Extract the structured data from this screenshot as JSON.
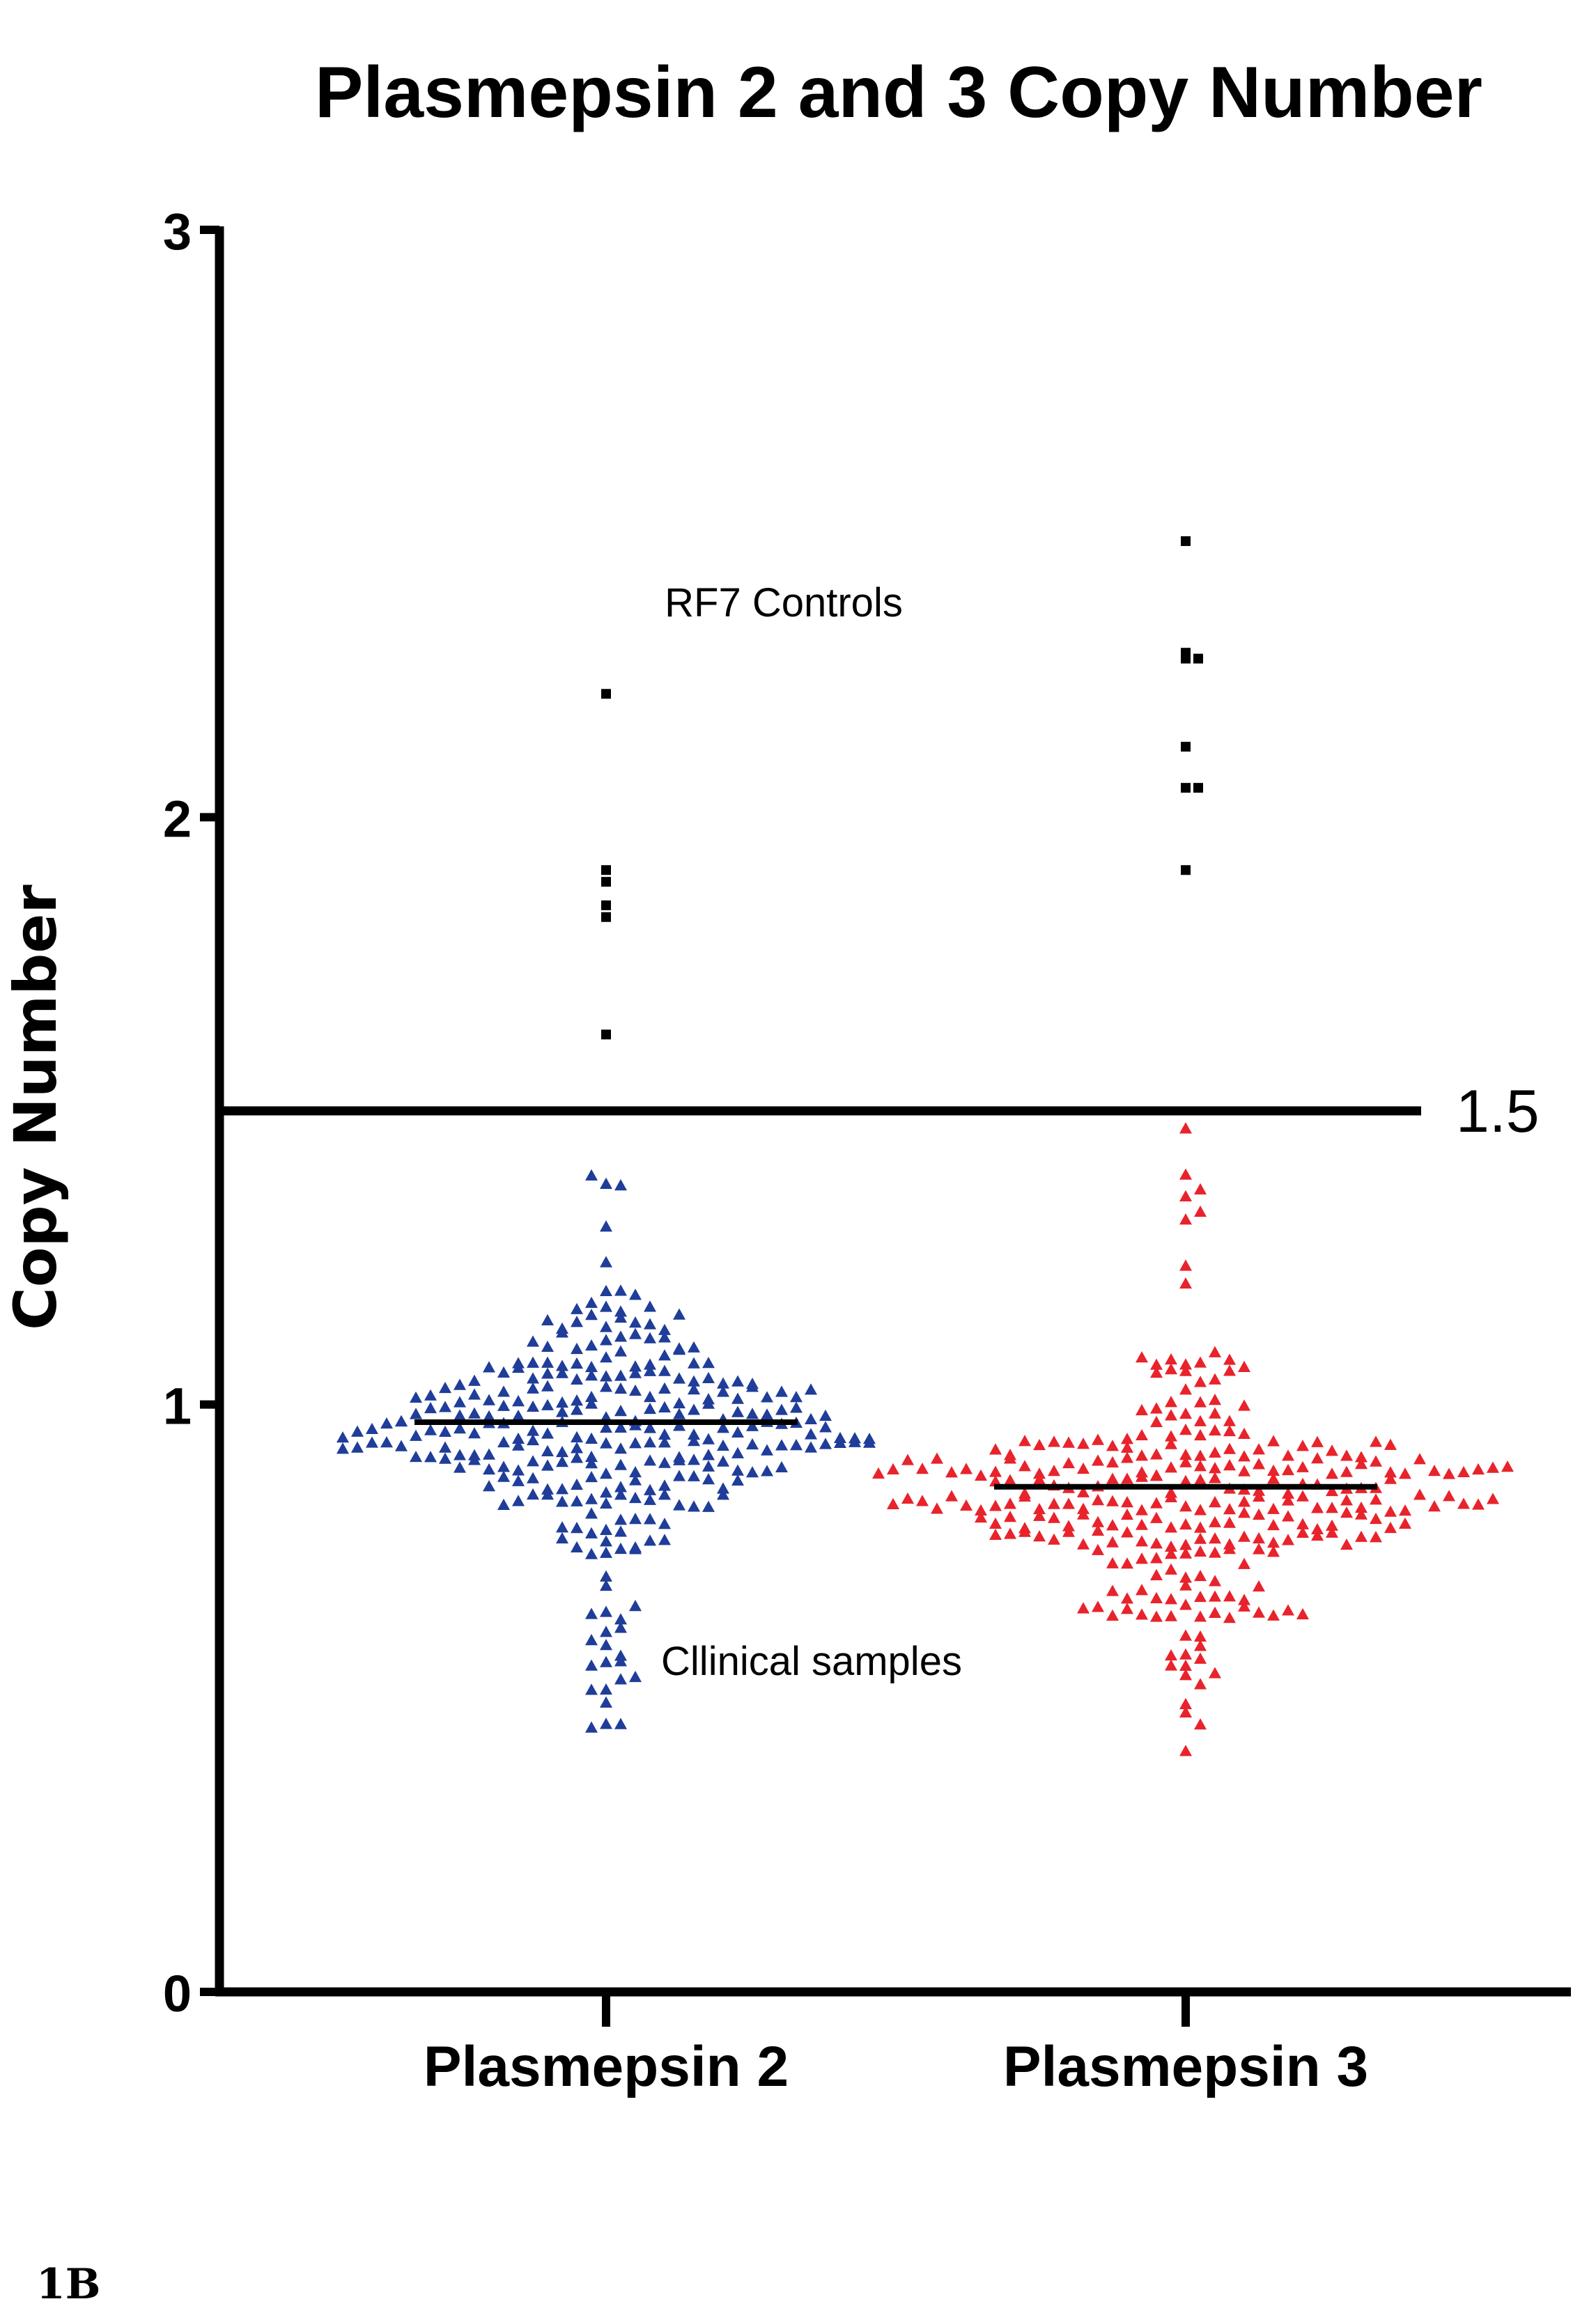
{
  "figure_label": "1B",
  "chart_data": {
    "type": "scatter",
    "title": "Plasmepsin 2 and 3 Copy Number",
    "xlabel": "",
    "ylabel": "Copy Number",
    "categories": [
      "Plasmepsin 2",
      "Plasmepsin 3"
    ],
    "ylim": [
      0,
      3
    ],
    "yticks": [
      "0",
      "1",
      "2",
      "3"
    ],
    "threshold": {
      "value": 1.5,
      "label": "1.5"
    },
    "annotations": {
      "controls": "RF7 Controls",
      "clinical": "Cllinical samples"
    },
    "colors": {
      "plasmepsin2": "#1f3d99",
      "plasmepsin3": "#e8232b",
      "controls": "#000000"
    },
    "series": [
      {
        "name": "Plasmepsin 2 - RF7 Controls",
        "category": "Plasmepsin 2",
        "marker": "square",
        "values": [
          2.21,
          1.91,
          1.89,
          1.85,
          1.83,
          1.63
        ]
      },
      {
        "name": "Plasmepsin 2 - Clinical samples",
        "category": "Plasmepsin 2",
        "marker": "triangle",
        "median": 0.97,
        "min": 0.45,
        "max": 1.39,
        "n": 300
      },
      {
        "name": "Plasmepsin 3 - RF7 Controls",
        "category": "Plasmepsin 3",
        "marker": "square",
        "values": [
          2.47,
          2.28,
          2.27,
          2.27,
          2.12,
          2.05,
          2.05,
          1.91
        ]
      },
      {
        "name": "Plasmepsin 3 - Clinical samples",
        "category": "Plasmepsin 3",
        "marker": "triangle",
        "median": 0.86,
        "min": 0.41,
        "max": 1.47,
        "n": 300
      }
    ]
  }
}
